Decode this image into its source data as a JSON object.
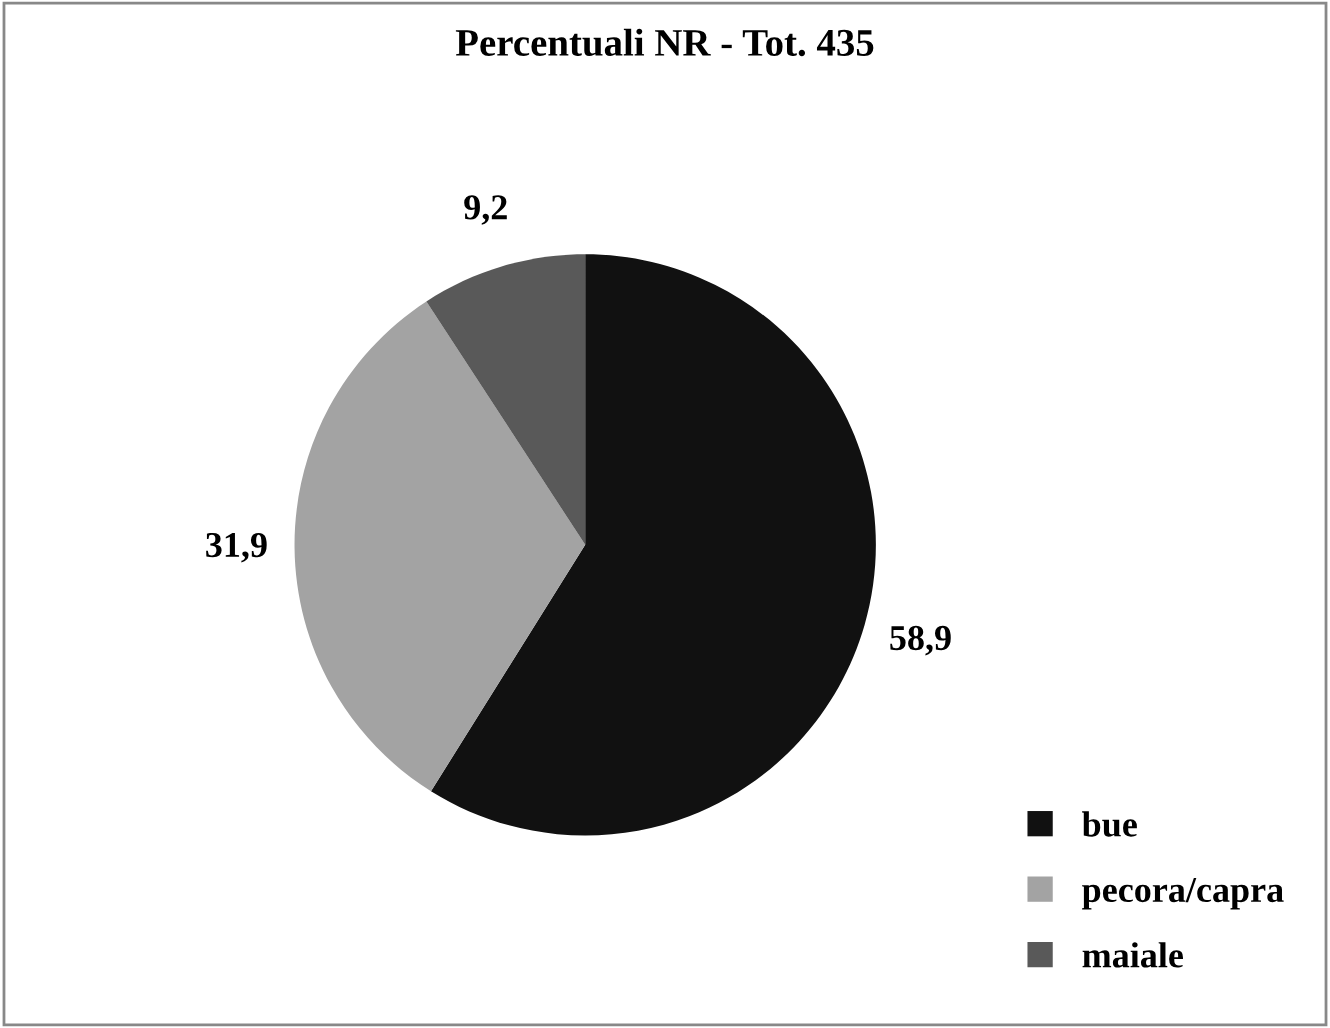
{
  "chart_data": {
    "type": "pie",
    "title": "Percentuali NR - Tot. 435",
    "categories": [
      "bue",
      "pecora/capra",
      "maiale"
    ],
    "values": [
      58.9,
      31.9,
      9.2
    ],
    "colors": [
      "#111111",
      "#a3a3a3",
      "#595959"
    ],
    "value_labels": [
      "58,9",
      "31,9",
      "9,2"
    ],
    "legend": "bottom right"
  }
}
